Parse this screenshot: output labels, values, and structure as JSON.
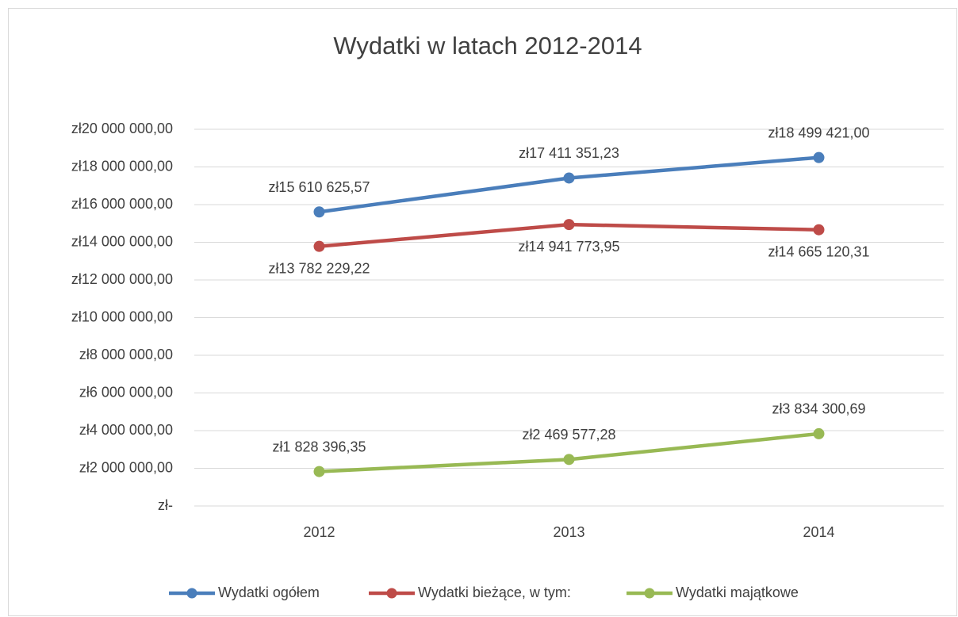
{
  "chart_data": {
    "type": "line",
    "title": "Wydatki w latach 2012-2014",
    "categories": [
      "2012",
      "2013",
      "2014"
    ],
    "series": [
      {
        "name": "Wydatki ogółem",
        "color": "#4a7ebb",
        "values": [
          15610625.57,
          17411351.23,
          18499421.0
        ],
        "value_labels": [
          "zł15 610 625,57",
          "zł17 411 351,23",
          "zł18 499 421,00"
        ]
      },
      {
        "name": "Wydatki bieżące, w tym:",
        "color": "#be4b48",
        "values": [
          13782229.22,
          14941773.95,
          14665120.31
        ],
        "value_labels": [
          "zł13 782 229,22",
          "zł14 941 773,95",
          "zł14 665 120,31"
        ]
      },
      {
        "name": "Wydatki majątkowe",
        "color": "#98b954",
        "values": [
          1828396.35,
          2469577.28,
          3834300.69
        ],
        "value_labels": [
          "zł1 828 396,35",
          "zł2 469 577,28",
          "zł3 834 300,69"
        ]
      }
    ],
    "ylim": [
      0,
      20000000
    ],
    "yticks": [
      {
        "value": 0,
        "label": "zł-"
      },
      {
        "value": 2000000,
        "label": "zł2 000 000,00"
      },
      {
        "value": 4000000,
        "label": "zł4 000 000,00"
      },
      {
        "value": 6000000,
        "label": "zł6 000 000,00"
      },
      {
        "value": 8000000,
        "label": "zł8 000 000,00"
      },
      {
        "value": 10000000,
        "label": "zł10 000 000,00"
      },
      {
        "value": 12000000,
        "label": "zł12 000 000,00"
      },
      {
        "value": 14000000,
        "label": "zł14 000 000,00"
      },
      {
        "value": 16000000,
        "label": "zł16 000 000,00"
      },
      {
        "value": 18000000,
        "label": "zł18 000 000,00"
      },
      {
        "value": 20000000,
        "label": "zł20 000 000,00"
      }
    ],
    "grid": true,
    "legend": "bottom"
  }
}
